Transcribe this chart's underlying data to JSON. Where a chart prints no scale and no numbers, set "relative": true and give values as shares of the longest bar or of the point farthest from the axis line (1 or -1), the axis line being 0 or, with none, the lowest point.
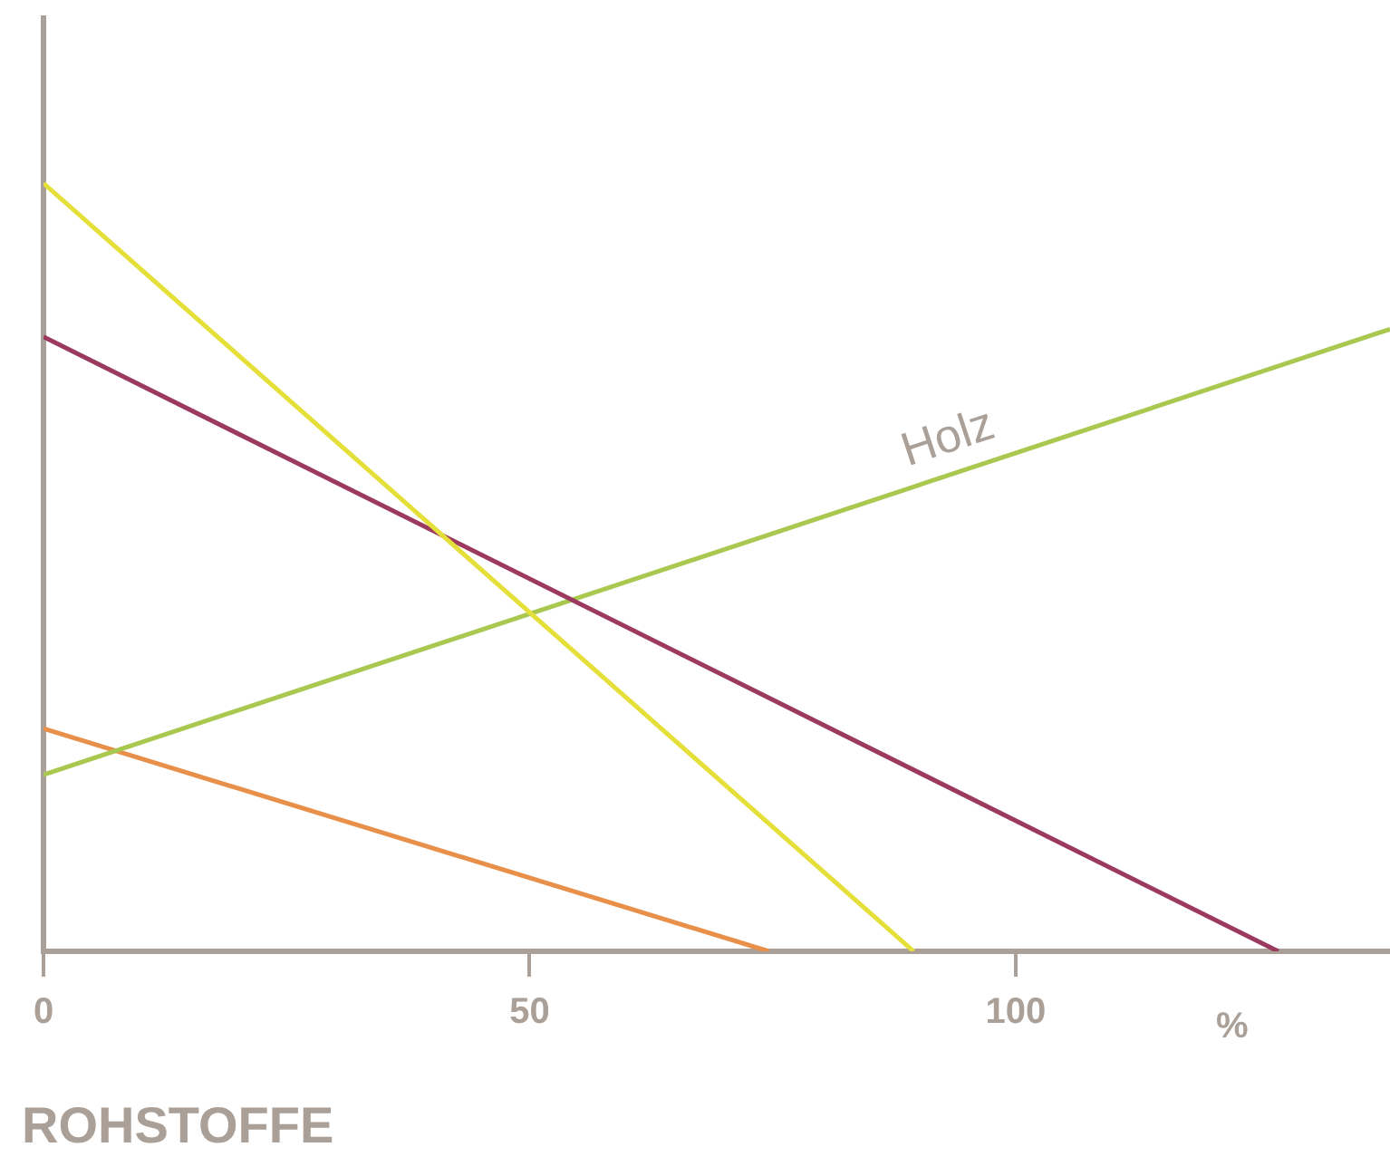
{
  "chart_data": {
    "type": "line",
    "title": "ROHSTOFFE",
    "xlabel": "%",
    "relative": true,
    "xlim": [
      0,
      138.5
    ],
    "xticks": [
      0,
      50,
      100
    ],
    "tick_labels": "x",
    "grid": false,
    "legend": false,
    "marker": "none",
    "line_style": "solid",
    "series": [
      {
        "color": "#e5df3a",
        "x": [
          0,
          89.5
        ],
        "values": [
          1,
          0
        ]
      },
      {
        "color": "#9b3a5e",
        "x": [
          0,
          127
        ],
        "values": [
          0.8,
          0
        ]
      },
      {
        "name": "Holz",
        "color": "#a8c850",
        "x": [
          0,
          138.5
        ],
        "values": [
          0.23,
          0.81
        ]
      },
      {
        "color": "#e8904a",
        "x": [
          0,
          74.6
        ],
        "values": [
          0.29,
          0
        ]
      }
    ]
  }
}
